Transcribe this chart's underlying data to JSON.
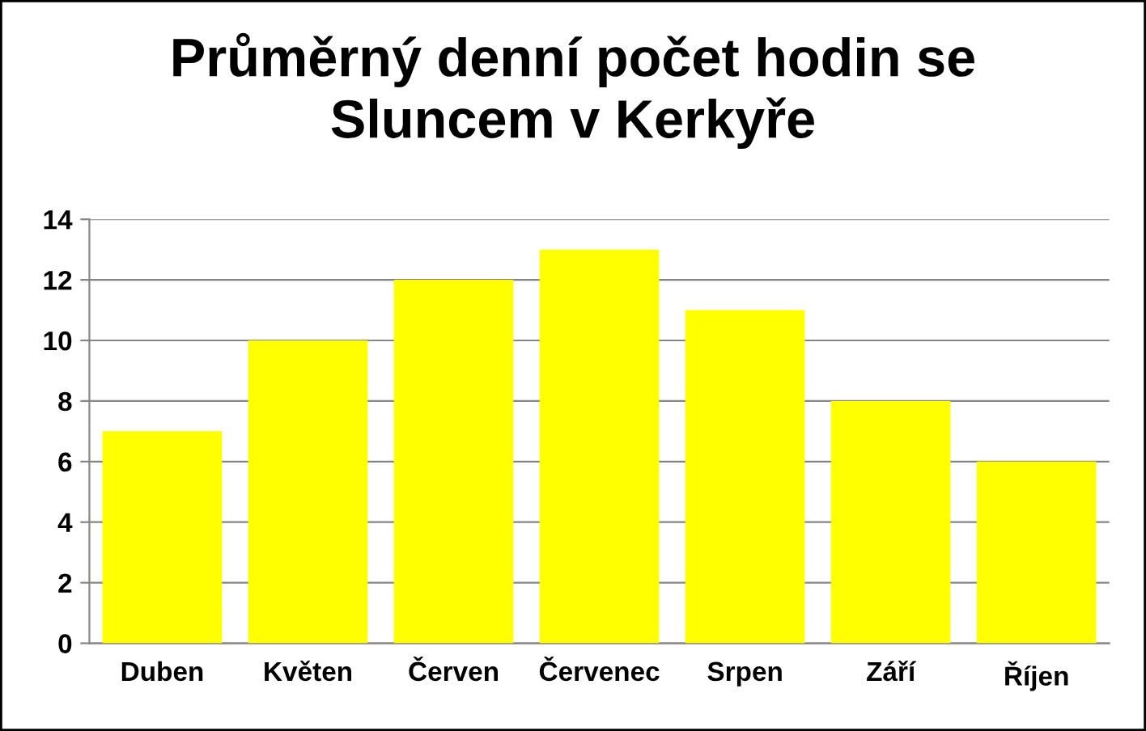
{
  "chart_data": {
    "type": "bar",
    "title": "Průměrný denní počet hodin se\nSluncem v Kerkyře",
    "categories": [
      "Duben",
      "Květen",
      "Červen",
      "Červenec",
      "Srpen",
      "Září",
      "Říjen"
    ],
    "values": [
      7,
      10,
      12,
      13,
      11,
      8,
      6
    ],
    "color": "#ffff00",
    "ylim": [
      0,
      14
    ],
    "yticks": [
      0,
      2,
      4,
      6,
      8,
      10,
      12,
      14
    ],
    "grid": "y",
    "legend": false
  }
}
